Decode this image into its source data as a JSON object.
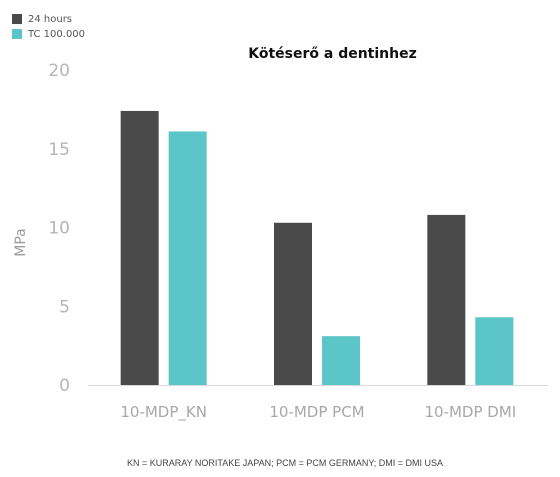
{
  "chart_data": {
    "type": "bar",
    "title": "Kötéserő a dentinhez",
    "ylabel": "MPa",
    "xlabel": "",
    "categories": [
      "10-MDP_KN",
      "10-MDP PCM",
      "10-MDP DMI"
    ],
    "series": [
      {
        "name": "24 hours",
        "color": "#4a4a4a",
        "values": [
          17.4,
          10.3,
          10.8
        ]
      },
      {
        "name": "TC 100.000",
        "color": "#5bc5c8",
        "values": [
          16.1,
          3.1,
          4.3
        ]
      }
    ],
    "ylim": [
      0,
      20
    ],
    "yticks": [
      "0",
      "5",
      "10",
      "15",
      "20"
    ],
    "grid": false,
    "legend_position": "top-left",
    "footnote": "KN = KURARAY NORITAKE JAPAN; PCM = PCM GERMANY; DMI = DMI USA"
  }
}
